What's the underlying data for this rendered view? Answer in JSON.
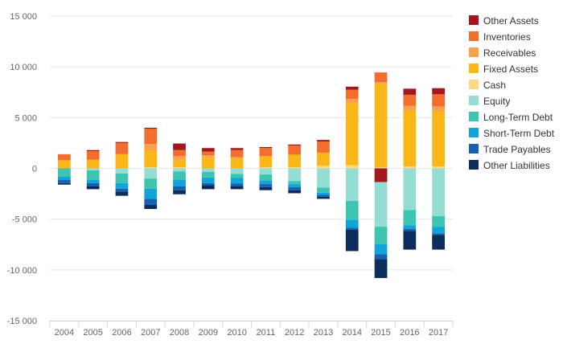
{
  "chart_data": {
    "type": "bar",
    "stacked": true,
    "title": "",
    "xlabel": "",
    "ylabel": "",
    "ylim": [
      -15000,
      15000
    ],
    "yticks": [
      15000,
      10000,
      5000,
      0,
      -5000,
      -10000,
      -15000
    ],
    "ytick_labels": [
      "15 000",
      "10 000",
      "5 000",
      "0",
      "-5 000",
      "-10 000",
      "-15 000"
    ],
    "grid": true,
    "legend_position": "right",
    "categories": [
      "2004",
      "2005",
      "2006",
      "2007",
      "2008",
      "2009",
      "2010",
      "2011",
      "2012",
      "2013",
      "2014",
      "2015",
      "2016",
      "2017"
    ],
    "series": [
      {
        "name": "Other Assets",
        "color": "#a3171d",
        "sign": "positive",
        "values": [
          0,
          100,
          100,
          100,
          650,
          350,
          200,
          100,
          100,
          150,
          300,
          0,
          600,
          600
        ]
      },
      {
        "name": "Inventories",
        "color": "#f36d2e",
        "sign": "positive",
        "values": [
          600,
          850,
          1100,
          1500,
          600,
          350,
          700,
          800,
          900,
          1100,
          900,
          950,
          1100,
          1200
        ]
      },
      {
        "name": "Receivables",
        "color": "#f9a24b",
        "sign": "positive",
        "values": [
          0,
          0,
          0,
          650,
          400,
          200,
          100,
          0,
          0,
          0,
          450,
          200,
          450,
          550
        ]
      },
      {
        "name": "Fixed Assets",
        "color": "#fbb617",
        "sign": "positive",
        "values": [
          800,
          850,
          1400,
          1650,
          700,
          1100,
          1000,
          1100,
          1250,
          1300,
          6100,
          8200,
          5500,
          5350
        ]
      },
      {
        "name": "Cash",
        "color": "#fdd980",
        "sign": "positive",
        "values": [
          0,
          0,
          0,
          100,
          100,
          0,
          0,
          100,
          100,
          250,
          300,
          100,
          200,
          200
        ]
      },
      {
        "name": "Equity",
        "color": "#94ddd3",
        "sign": "negative",
        "values": [
          0,
          -200,
          -500,
          -1000,
          -300,
          -350,
          -550,
          -600,
          -1250,
          -1900,
          -3200,
          -4400,
          -4100,
          -4700
        ]
      },
      {
        "name": "Long-Term Debt",
        "color": "#3ec5b1",
        "sign": "negative",
        "values": [
          -800,
          -950,
          -950,
          -1000,
          -800,
          -550,
          -400,
          -600,
          -300,
          -500,
          -1850,
          -1700,
          -1500,
          -1050
        ]
      },
      {
        "name": "Short-Term Debt",
        "color": "#0fa5d6",
        "sign": "negative",
        "values": [
          -350,
          -300,
          -550,
          -1000,
          -650,
          -550,
          -550,
          -350,
          -300,
          -200,
          -800,
          -1000,
          -350,
          -650
        ]
      },
      {
        "name": "Trade Payables",
        "color": "#1561b2",
        "sign": "negative",
        "values": [
          -300,
          -300,
          -300,
          -600,
          -400,
          -200,
          -250,
          -300,
          -300,
          -200,
          -200,
          -500,
          -200,
          -150
        ]
      },
      {
        "name": "Other Liabilities",
        "color": "#0b2e5c",
        "sign": "negative",
        "values": [
          -150,
          -300,
          -400,
          -400,
          -400,
          -400,
          -300,
          -300,
          -300,
          -200,
          -2100,
          -1850,
          -1850,
          -1450
        ],
        "stack_order": "inner"
      },
      {
        "name": "Other Assets",
        "color": "#a3171d",
        "sign": "negative",
        "values": [
          0,
          0,
          0,
          0,
          0,
          0,
          0,
          0,
          0,
          0,
          0,
          -1350,
          0,
          0
        ],
        "stack_order": "inner",
        "show_in_legend": false
      }
    ]
  }
}
